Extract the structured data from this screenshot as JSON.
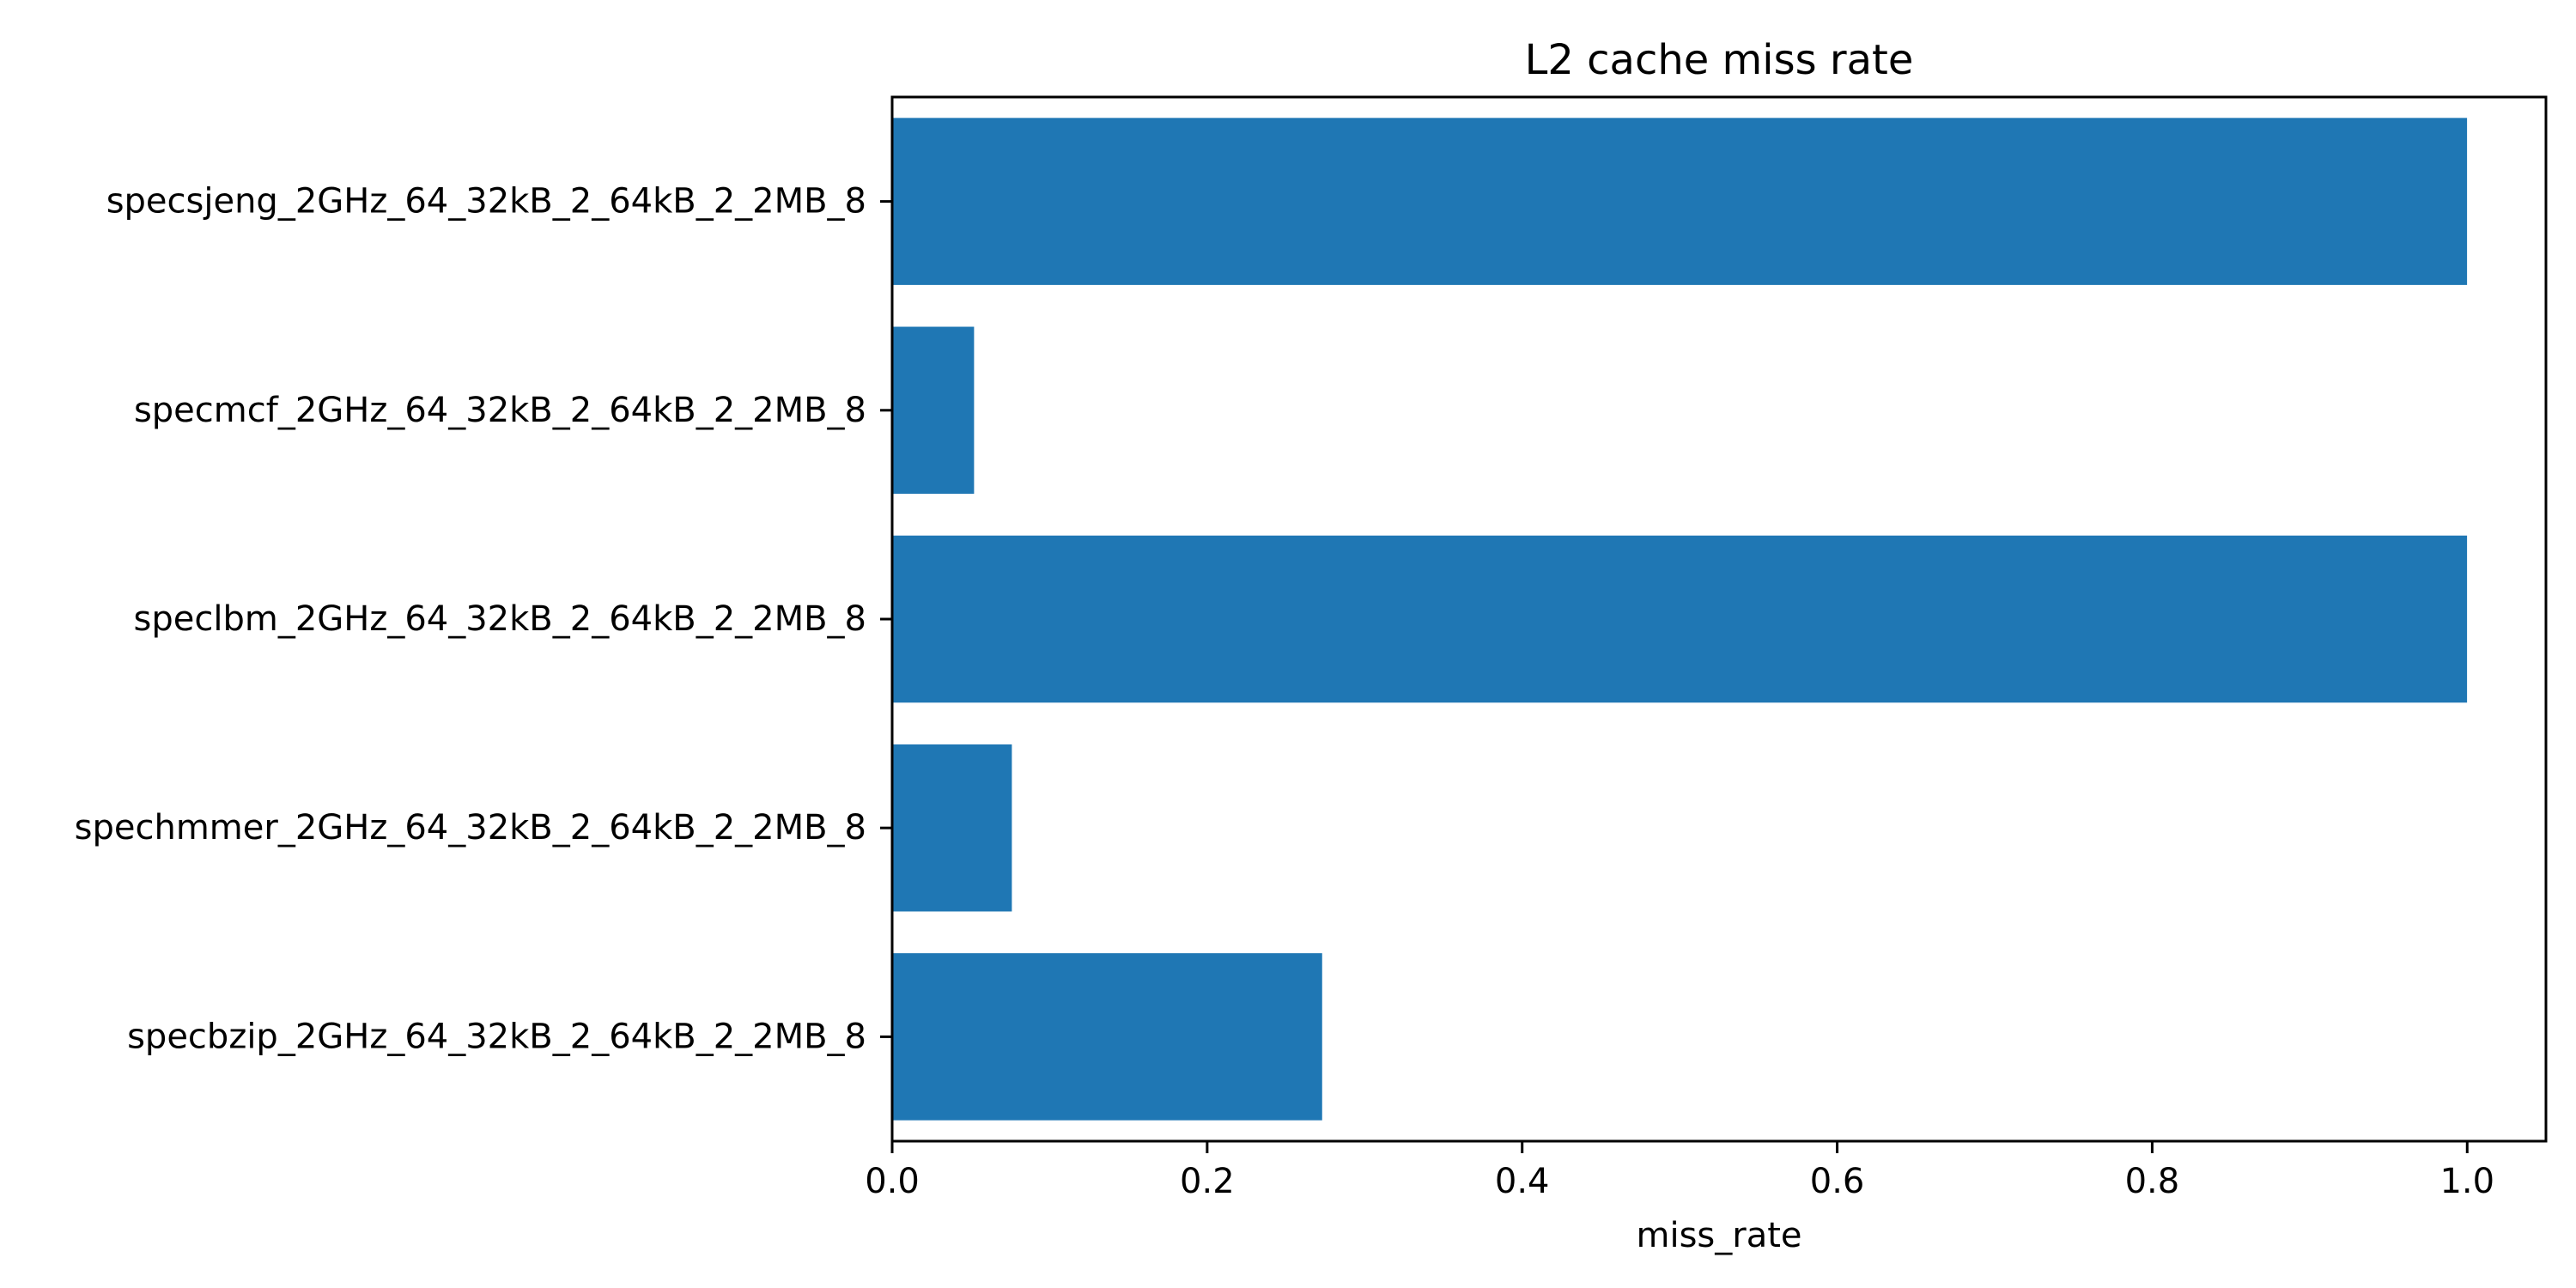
{
  "chart_data": {
    "type": "bar",
    "orientation": "horizontal",
    "title": "L2 cache miss rate",
    "xlabel": "miss_rate",
    "ylabel": "",
    "xlim": [
      0.0,
      1.05
    ],
    "xticks": [
      "0.0",
      "0.2",
      "0.4",
      "0.6",
      "0.8",
      "1.0"
    ],
    "grid": false,
    "categories": [
      "specsjeng_2GHz_64_32kB_2_64kB_2_2MB_8",
      "specmcf_2GHz_64_32kB_2_64kB_2_2MB_8",
      "speclbm_2GHz_64_32kB_2_64kB_2_2MB_8",
      "spechmmer_2GHz_64_32kB_2_64kB_2_2MB_8",
      "specbzip_2GHz_64_32kB_2_64kB_2_2MB_8"
    ],
    "values": [
      0.9999,
      0.052,
      0.9999,
      0.076,
      0.273
    ],
    "bar_color": "#1f77b4"
  }
}
